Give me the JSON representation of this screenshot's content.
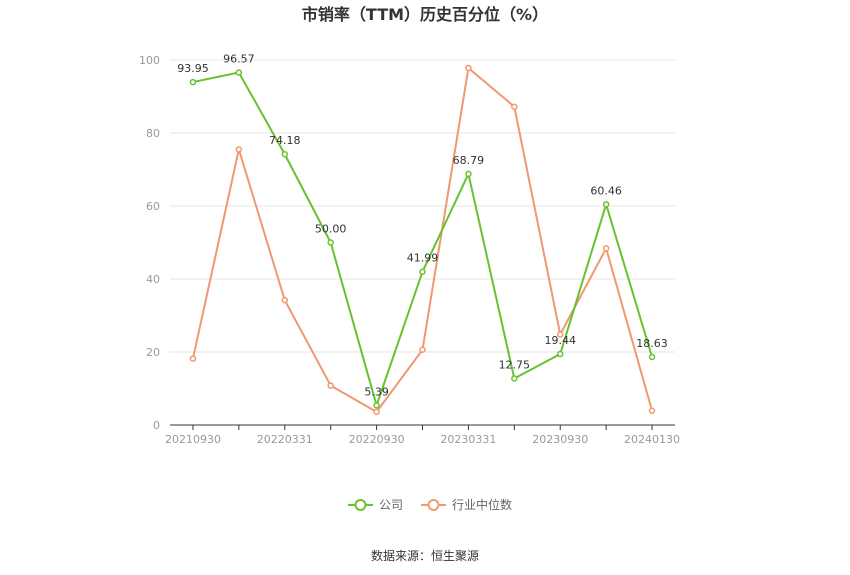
{
  "chart_data": {
    "type": "line",
    "title": "市销率（TTM）历史百分位（%）",
    "xlabel": "",
    "ylabel": "",
    "ylim": [
      0,
      100
    ],
    "yticks": [
      0,
      20,
      40,
      60,
      80,
      100
    ],
    "x": [
      "20210930",
      "20211231",
      "20220331",
      "20220630",
      "20220930",
      "20221231",
      "20230331",
      "20230630",
      "20230930",
      "20231231",
      "20240130"
    ],
    "xtick_labels": [
      "20210930",
      "20220331",
      "20220930",
      "20230331",
      "20230930",
      "20240130"
    ],
    "grid": true,
    "legend": "bottom-center",
    "series": [
      {
        "name": "公司",
        "color": "#66c22e",
        "values": [
          93.95,
          96.57,
          74.18,
          50.0,
          5.39,
          41.99,
          68.79,
          12.75,
          19.44,
          60.46,
          18.63
        ],
        "labels": [
          "93.95",
          "96.57",
          "74.18",
          "50.00",
          "5.39",
          "41.99",
          "68.79",
          "12.75",
          "19.44",
          "60.46",
          "18.63"
        ]
      },
      {
        "name": "行业中位数",
        "color": "#f0986e",
        "values": [
          18.2,
          75.5,
          34.2,
          10.8,
          3.6,
          20.6,
          97.8,
          87.2,
          24.8,
          48.4,
          3.9
        ]
      }
    ]
  },
  "source": "数据来源：恒生聚源"
}
